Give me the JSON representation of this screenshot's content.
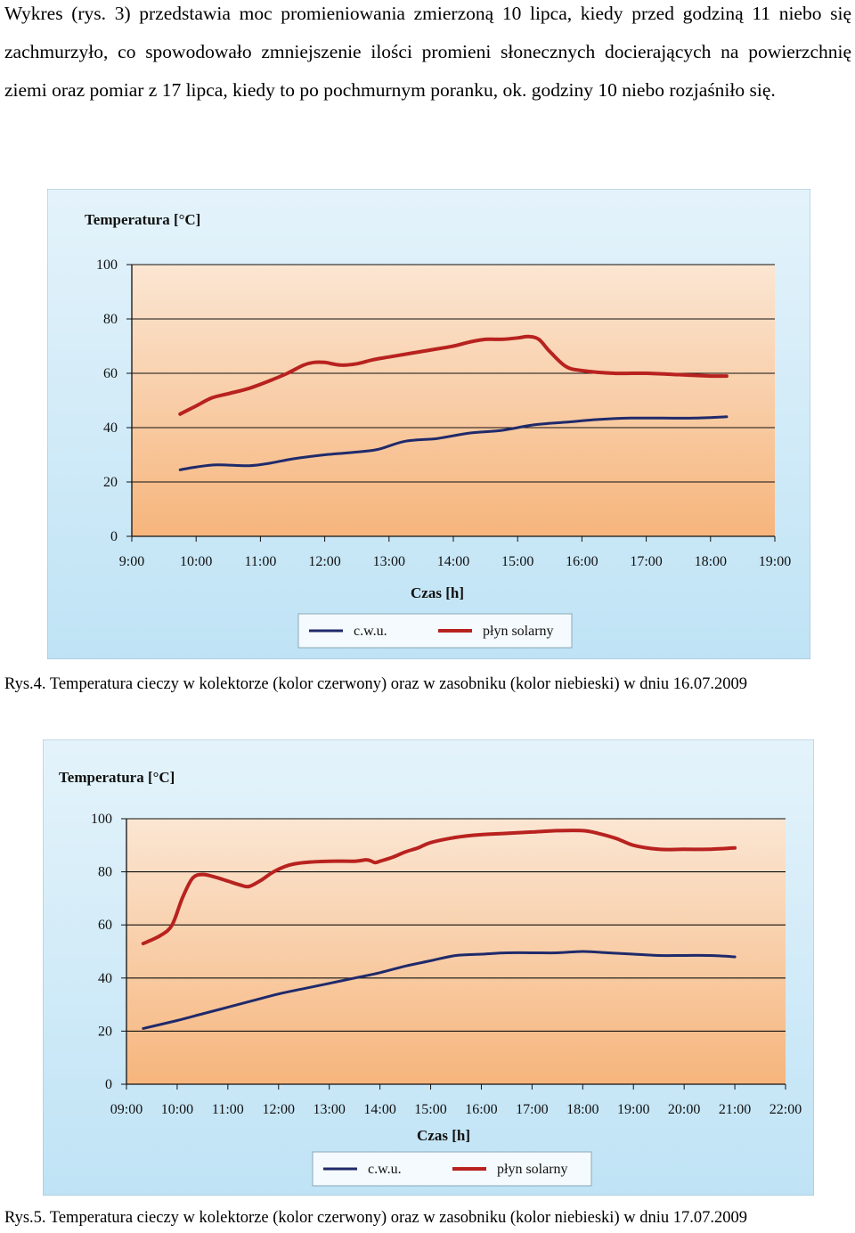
{
  "document": {
    "intro_text": "Wykres (rys. 3) przedstawia moc promieniowania zmierzoną 10 lipca, kiedy przed godziną 11 niebo się zachmurzyło, co spowodowało zmniejszenie ilości promieni słonecznych docierających na powierzchnię ziemi oraz pomiar z 17 lipca, kiedy to po pochmurnym poranku, ok. godziny 10 niebo rozjaśniło się.",
    "caption_1": "Rys.4. Temperatura cieczy w kolektorze (kolor czerwony) oraz w zasobniku (kolor niebieski) w dniu 16.07.2009",
    "caption_2": "Rys.5. Temperatura cieczy w kolektorze (kolor czerwony) oraz w zasobniku (kolor niebieski) w dniu 17.07.2009"
  },
  "colors": {
    "cwu_series": "#1f2a6b",
    "solar_series": "#b8221f",
    "frame_bg": "#bfe3f5",
    "plot_top": "#fbe6d3",
    "plot_bottom": "#f6b57c"
  },
  "chart_data": [
    {
      "type": "line",
      "ylabel": "Temperatura [°C]",
      "xlabel": "Czas [h]",
      "ylim": [
        0,
        100
      ],
      "yticks": [
        "0",
        "20",
        "40",
        "60",
        "80",
        "100"
      ],
      "xlim": [
        9,
        19
      ],
      "xticks": [
        "9:00",
        "10:00",
        "11:00",
        "12:00",
        "13:00",
        "14:00",
        "15:00",
        "16:00",
        "17:00",
        "18:00",
        "19:00"
      ],
      "grid": true,
      "legend_position": "bottom",
      "series": [
        {
          "name": "c.w.u.",
          "color": "#1f2a6b",
          "x": [
            9.75,
            10.0,
            10.33,
            10.83,
            11.17,
            11.5,
            12.0,
            12.5,
            12.83,
            13.25,
            13.75,
            14.25,
            14.75,
            15.25,
            15.75,
            16.25,
            16.75,
            17.25,
            17.75,
            18.25
          ],
          "values": [
            24.5,
            25.5,
            26.3,
            26.0,
            27.0,
            28.5,
            30.0,
            31.0,
            32.0,
            35.0,
            36.0,
            38.0,
            39.0,
            41.0,
            42.0,
            43.0,
            43.5,
            43.5,
            43.5,
            44.0
          ]
        },
        {
          "name": "płyn solarny",
          "color": "#b8221f",
          "x": [
            9.75,
            10.0,
            10.25,
            10.5,
            10.83,
            11.17,
            11.42,
            11.67,
            11.83,
            12.0,
            12.25,
            12.5,
            12.75,
            13.0,
            13.5,
            14.0,
            14.25,
            14.5,
            14.75,
            15.0,
            15.17,
            15.33,
            15.5,
            15.75,
            16.0,
            16.5,
            17.0,
            17.5,
            18.0,
            18.25
          ],
          "values": [
            45,
            48,
            51,
            52.5,
            54.5,
            57.5,
            60,
            63,
            64,
            64,
            63,
            63.5,
            65,
            66,
            68,
            70,
            71.5,
            72.5,
            72.5,
            73,
            73.5,
            72.5,
            68,
            62.5,
            61,
            60,
            60,
            59.5,
            59,
            59
          ]
        }
      ]
    },
    {
      "type": "line",
      "ylabel": "Temperatura [°C]",
      "xlabel": "Czas [h]",
      "ylim": [
        0,
        100
      ],
      "yticks": [
        "0",
        "20",
        "40",
        "60",
        "80",
        "100"
      ],
      "xlim": [
        9,
        22
      ],
      "xticks": [
        "09:00",
        "10:00",
        "11:00",
        "12:00",
        "13:00",
        "14:00",
        "15:00",
        "16:00",
        "17:00",
        "18:00",
        "19:00",
        "20:00",
        "21:00",
        "22:00"
      ],
      "grid": true,
      "legend_position": "bottom",
      "series": [
        {
          "name": "c.w.u.",
          "color": "#1f2a6b",
          "x": [
            9.33,
            10.0,
            10.5,
            11.0,
            11.5,
            12.0,
            12.5,
            13.0,
            13.5,
            14.0,
            14.5,
            15.0,
            15.5,
            16.0,
            16.5,
            17.0,
            17.5,
            18.0,
            18.5,
            19.0,
            19.5,
            20.0,
            20.5,
            21.0
          ],
          "values": [
            21,
            24,
            26.5,
            29,
            31.5,
            34,
            36,
            38,
            40,
            42,
            44.5,
            46.5,
            48.5,
            49,
            49.5,
            49.5,
            49.5,
            50,
            49.5,
            49,
            48.5,
            48.5,
            48.5,
            48
          ]
        },
        {
          "name": "płyn solarny",
          "color": "#b8221f",
          "x": [
            9.33,
            9.67,
            9.9,
            10.1,
            10.3,
            10.5,
            10.75,
            11.0,
            11.25,
            11.42,
            11.67,
            11.9,
            12.2,
            12.5,
            13.0,
            13.5,
            13.75,
            13.9,
            14.0,
            14.25,
            14.5,
            14.75,
            15.0,
            15.5,
            16.0,
            16.5,
            17.0,
            17.5,
            18.0,
            18.3,
            18.67,
            19.0,
            19.5,
            20.0,
            20.5,
            21.0
          ],
          "values": [
            53,
            56,
            60,
            70,
            77.5,
            79,
            78,
            76.5,
            75,
            74.5,
            77,
            80,
            82.5,
            83.5,
            84,
            84,
            84.5,
            83.5,
            84,
            85.5,
            87.5,
            89,
            91,
            93,
            94,
            94.5,
            95,
            95.5,
            95.5,
            94.5,
            92.5,
            90,
            88.5,
            88.5,
            88.5,
            89
          ]
        }
      ]
    }
  ]
}
